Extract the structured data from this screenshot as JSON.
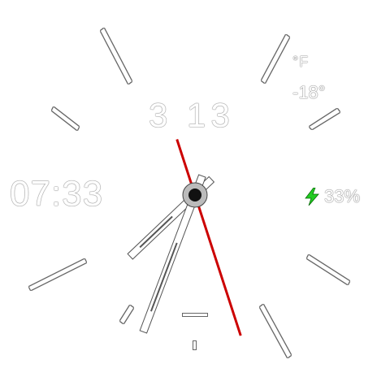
{
  "weather": {
    "unit_label": "°F",
    "temperature": "-18°"
  },
  "date": {
    "day_label": "3 13"
  },
  "digital_time": "07:33",
  "battery": {
    "percent_text": "33%",
    "icon": "lightning-bolt-icon",
    "color": "#22cc22"
  },
  "analog": {
    "hour": 7,
    "minute": 33,
    "second": 27
  },
  "colors": {
    "second_hand": "#cc0000",
    "hands": "#ffffff",
    "center": "#111111"
  }
}
